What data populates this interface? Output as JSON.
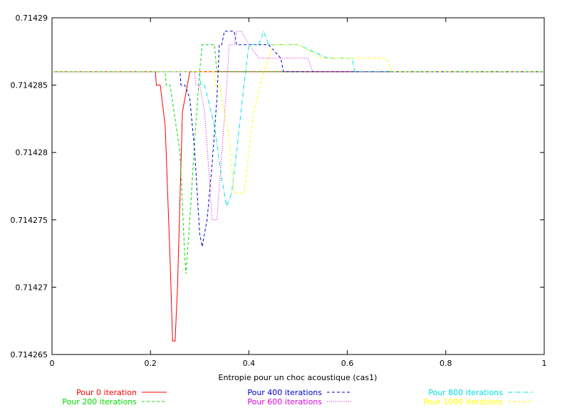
{
  "chart_data": {
    "type": "line",
    "title": "",
    "xlabel": "Entropie pour un choc acoustique (cas1)",
    "ylabel": "",
    "xlim": [
      0,
      1
    ],
    "ylim": [
      0.714265,
      0.71429
    ],
    "x_ticks": [
      0,
      0.2,
      0.4,
      0.6,
      0.8,
      1
    ],
    "x_tick_labels": [
      "0",
      "0.2",
      "0.4",
      "0.6",
      "0.8",
      "1"
    ],
    "y_ticks": [
      0.714265,
      0.71427,
      0.714275,
      0.71428,
      0.714285,
      0.71429
    ],
    "y_tick_labels": [
      "0.714265",
      "0.71427",
      "0.714275",
      "0.71428",
      "0.714285",
      "0.71429"
    ],
    "grid": false,
    "legend_position": "bottom",
    "series": [
      {
        "name": "Pour 0 iteration",
        "color": "#ff0000",
        "dash": "solid",
        "x": [
          0,
          0.21,
          0.212,
          0.22,
          0.23,
          0.24,
          0.245,
          0.25,
          0.255,
          0.265,
          0.275,
          0.28,
          1
        ],
        "y": [
          0.714286,
          0.714286,
          0.714285,
          0.714285,
          0.714282,
          0.714272,
          0.714266,
          0.714266,
          0.71427,
          0.714283,
          0.714285,
          0.714286,
          0.714286
        ]
      },
      {
        "name": "Pour 200 iterations",
        "color": "#00dd00",
        "dash": "dashed",
        "x": [
          0,
          0.23,
          0.232,
          0.24,
          0.26,
          0.27,
          0.272,
          0.28,
          0.29,
          0.3,
          0.305,
          0.31,
          0.33,
          0.335,
          1
        ],
        "y": [
          0.714286,
          0.714286,
          0.714285,
          0.714285,
          0.71428,
          0.714272,
          0.714271,
          0.714275,
          0.714281,
          0.714286,
          0.714288,
          0.714288,
          0.714288,
          0.714286,
          0.714286
        ]
      },
      {
        "name": "Pour 400 iterations",
        "color": "#0000cc",
        "dash": "dashed",
        "x": [
          0,
          0.26,
          0.262,
          0.27,
          0.28,
          0.29,
          0.3,
          0.305,
          0.315,
          0.325,
          0.335,
          0.34,
          0.345,
          0.35,
          0.355,
          0.37,
          0.375,
          0.4,
          0.44,
          0.465,
          0.47,
          1
        ],
        "y": [
          0.714286,
          0.714286,
          0.714285,
          0.714285,
          0.714284,
          0.71428,
          0.714274,
          0.714273,
          0.714275,
          0.714279,
          0.714284,
          0.714288,
          0.714288,
          0.714289,
          0.714289,
          0.714289,
          0.714288,
          0.714288,
          0.714288,
          0.714287,
          0.714286,
          0.714286
        ]
      },
      {
        "name": "Pour 600 iterations",
        "color": "#dd00dd",
        "dash": "dotted",
        "x": [
          0,
          0.29,
          0.292,
          0.3,
          0.31,
          0.32,
          0.325,
          0.335,
          0.345,
          0.355,
          0.36,
          0.37,
          0.375,
          0.385,
          0.4,
          0.42,
          0.45,
          0.47,
          0.5,
          0.52,
          0.53,
          1
        ],
        "y": [
          0.714286,
          0.714286,
          0.714285,
          0.714285,
          0.714283,
          0.714278,
          0.714275,
          0.714275,
          0.71428,
          0.714285,
          0.714288,
          0.714288,
          0.714289,
          0.714289,
          0.714288,
          0.714287,
          0.714287,
          0.714287,
          0.714287,
          0.714287,
          0.714286,
          0.714286
        ]
      },
      {
        "name": "Pour 800 iterations",
        "color": "#00dddd",
        "dash": "dashdot",
        "x": [
          0,
          0.3,
          0.302,
          0.31,
          0.33,
          0.345,
          0.355,
          0.365,
          0.375,
          0.39,
          0.4,
          0.42,
          0.43,
          0.44,
          0.5,
          0.56,
          0.61,
          0.615,
          1
        ],
        "y": [
          0.714286,
          0.714286,
          0.714285,
          0.714285,
          0.714282,
          0.714278,
          0.714276,
          0.714277,
          0.71428,
          0.714285,
          0.714288,
          0.714288,
          0.714289,
          0.714288,
          0.714288,
          0.714287,
          0.714287,
          0.714286,
          0.714286
        ]
      },
      {
        "name": "Pour 1000 iterations",
        "color": "#ffff00",
        "dash": "dashed",
        "x": [
          0,
          0.33,
          0.332,
          0.34,
          0.36,
          0.37,
          0.39,
          0.41,
          0.43,
          0.45,
          0.5,
          0.55,
          0.6,
          0.65,
          0.68,
          0.69,
          1
        ],
        "y": [
          0.714286,
          0.714286,
          0.714285,
          0.714285,
          0.714281,
          0.714277,
          0.714277,
          0.714283,
          0.714286,
          0.714288,
          0.714288,
          0.714287,
          0.714287,
          0.714287,
          0.714287,
          0.714286,
          0.714286
        ]
      }
    ]
  }
}
